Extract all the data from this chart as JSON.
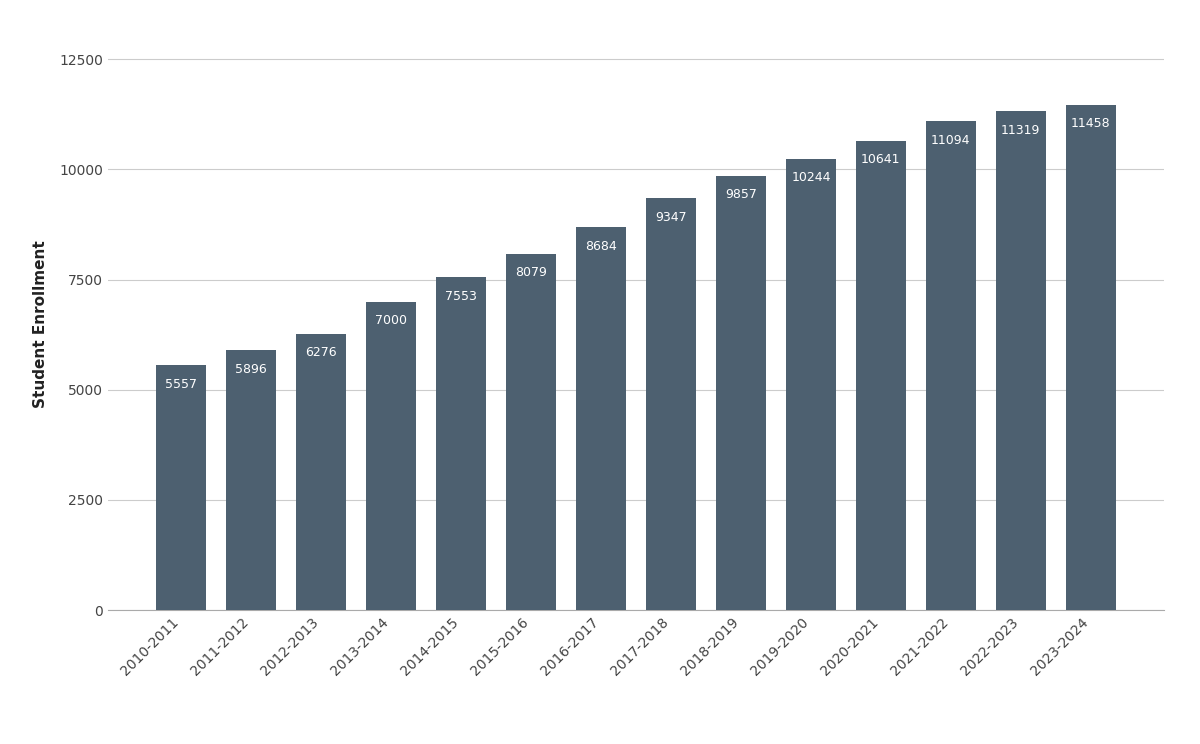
{
  "categories": [
    "2010-2011",
    "2011-2012",
    "2012-2013",
    "2013-2014",
    "2014-2015",
    "2015-2016",
    "2016-2017",
    "2017-2018",
    "2018-2019",
    "2019-2020",
    "2020-2021",
    "2021-2022",
    "2022-2023",
    "2023-2024"
  ],
  "values": [
    5557,
    5896,
    6276,
    7000,
    7553,
    8079,
    8684,
    9347,
    9857,
    10244,
    10641,
    11094,
    11319,
    11458
  ],
  "bar_color": "#4d6070",
  "ylabel": "Student Enrollment",
  "ylim": [
    0,
    13000
  ],
  "yticks": [
    0,
    2500,
    5000,
    7500,
    10000,
    12500
  ],
  "background_color": "#ffffff",
  "label_color": "#ffffff",
  "label_fontsize": 9,
  "ylabel_fontsize": 11,
  "tick_labelsize": 10,
  "bar_width": 0.72
}
